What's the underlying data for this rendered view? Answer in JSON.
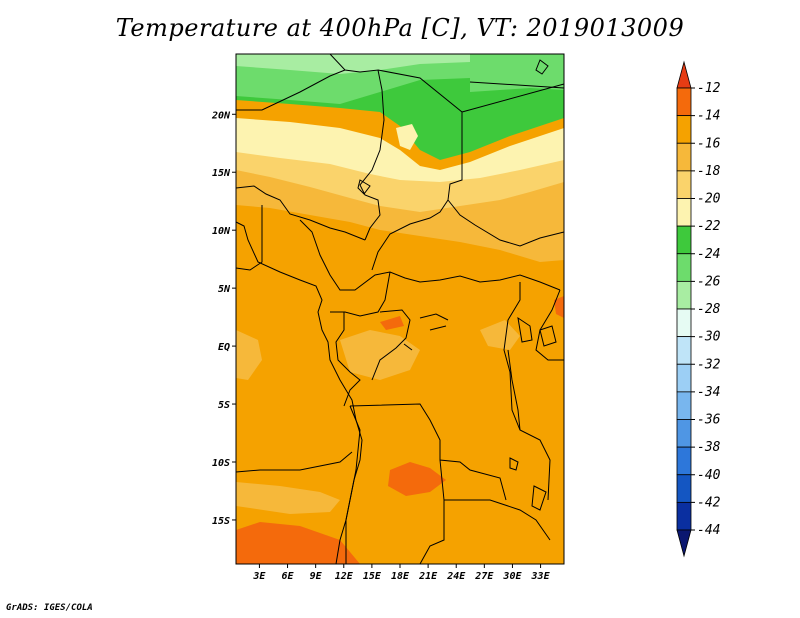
{
  "title": "Temperature at 400hPa [C], VT: 2019013009",
  "credit": "GrADS: IGES/COLA",
  "map": {
    "lat_labels": [
      "20N",
      "15N",
      "10N",
      "5N",
      "EQ",
      "5S",
      "10S",
      "15S"
    ],
    "lat_values": [
      20,
      15,
      10,
      5,
      0,
      -5,
      -10,
      -15
    ],
    "lon_labels": [
      "3E",
      "6E",
      "9E",
      "12E",
      "15E",
      "18E",
      "21E",
      "24E",
      "27E",
      "30E",
      "33E"
    ],
    "lon_values": [
      3,
      6,
      9,
      12,
      15,
      18,
      21,
      24,
      27,
      30,
      33
    ]
  },
  "colorbar": {
    "labels": [
      "-12",
      "-14",
      "-16",
      "-18",
      "-20",
      "-22",
      "-24",
      "-26",
      "-28",
      "-30",
      "-32",
      "-34",
      "-36",
      "-38",
      "-40",
      "-42",
      "-44"
    ],
    "colors": [
      "#e63c14",
      "#f46a0c",
      "#f5a200",
      "#f6b83a",
      "#fad36b",
      "#fdf3b0",
      "#3ec93c",
      "#6ddc6c",
      "#a8eda2",
      "#e6fbf3",
      "#bfe4f8",
      "#9ccff5",
      "#78b6ee",
      "#4f96e4",
      "#2d77da",
      "#1456c2",
      "#0a2fa0",
      "#0b1770"
    ]
  },
  "colors": {
    "warm_orange": "#f5a200",
    "hot_orange": "#f46a0c",
    "light_orange": "#f6b83a",
    "pale_yellow": "#fdf3b0",
    "yellow": "#fad36b",
    "green_dark": "#3ec93c",
    "green_mid": "#6ddc6c",
    "green_light": "#a8eda2"
  }
}
